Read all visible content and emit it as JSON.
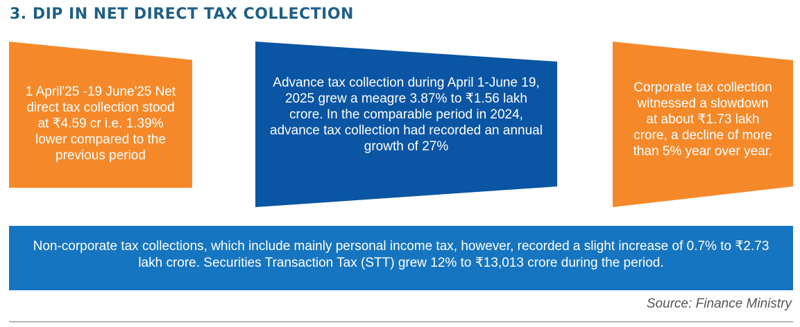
{
  "header": {
    "title": "3. DIP IN NET DIRECT TAX COLLECTION"
  },
  "panels": {
    "left": {
      "text": "1 April'25 -19 June'25 Net direct tax collection stood at ₹4.59 cr i.e. 1.39% lower compared to the previous period"
    },
    "center": {
      "text": "Advance tax collection during April 1-June 19, 2025 grew a meagre 3.87% to ₹1.56 lakh crore. In the comparable period in 2024, advance tax collection had recorded an annual growth of 27%"
    },
    "right": {
      "text": "Corporate tax collection witnessed a slowdown at about ₹1.73 lakh crore, a decline of more than 5% year over year."
    }
  },
  "banner": {
    "text": "Non-corporate tax collections, which include mainly personal income tax, however, recorded a slight increase of 0.7% to ₹2.73 lakh crore. Securities Transaction Tax (STT) grew 12% to ₹13,013 crore during the period."
  },
  "footer": {
    "source": "Source: Finance Ministry"
  },
  "colors": {
    "title": "#1f5f86",
    "orange_panel": "#f5892a",
    "dark_blue_panel": "#0a55a4",
    "banner_blue": "#1675c0"
  }
}
